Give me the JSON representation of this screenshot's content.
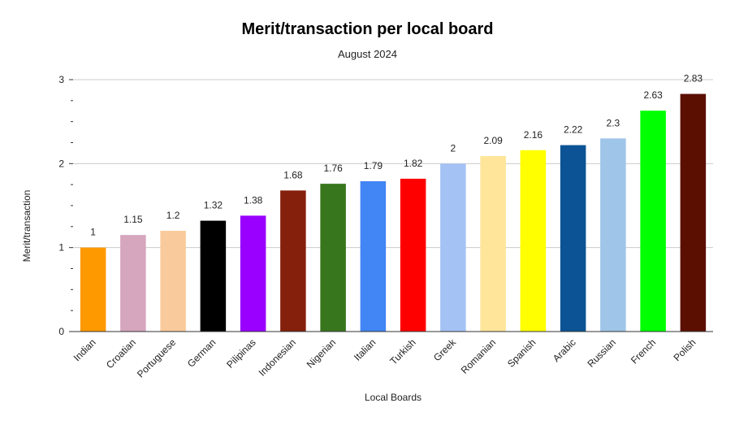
{
  "chart_data": {
    "type": "bar",
    "title": "Merit/transaction per local board",
    "subtitle": "August 2024",
    "xlabel": "Local Boards",
    "ylabel": "Merit/transaction",
    "ylim": [
      0,
      3
    ],
    "yticks": [
      "0",
      "1",
      "2",
      "3"
    ],
    "grid": true,
    "legend": "none",
    "categories": [
      "Indian",
      "Croatian",
      "Portuguese",
      "German",
      "Pilipinas",
      "Indonesian",
      "Nigerian",
      "Italian",
      "Turkish",
      "Greek",
      "Romanian",
      "Spanish",
      "Arabic",
      "Russian",
      "French",
      "Polish"
    ],
    "values": [
      1,
      1.15,
      1.2,
      1.32,
      1.38,
      1.68,
      1.76,
      1.79,
      1.82,
      2,
      2.09,
      2.16,
      2.22,
      2.3,
      2.63,
      2.83
    ],
    "data_labels": [
      "1",
      "1.15",
      "1.2",
      "1.32",
      "1.38",
      "1.68",
      "1.76",
      "1.79",
      "1.82",
      "2",
      "2.09",
      "2.16",
      "2.22",
      "2.3",
      "2.63",
      "2.83"
    ],
    "colors": [
      "#ff9900",
      "#d5a6bd",
      "#f9cb9c",
      "#000000",
      "#9900ff",
      "#85200c",
      "#38761d",
      "#4285f4",
      "#ff0000",
      "#a4c2f4",
      "#ffe599",
      "#ffff00",
      "#0b5394",
      "#9fc5e8",
      "#00ff00",
      "#5b0f00"
    ]
  }
}
